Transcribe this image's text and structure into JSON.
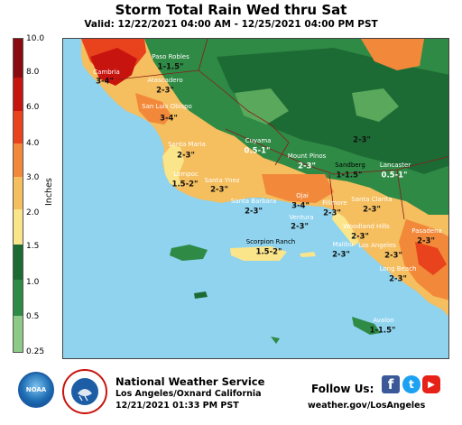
{
  "header": {
    "title": "Storm Total Rain Wed thru Sat",
    "valid": "Valid: 12/22/2021 04:00 AM - 12/25/2021 04:00 PM PST"
  },
  "legend": {
    "axis_label": "Inches",
    "ticks": [
      "10.0",
      "8.0",
      "6.0",
      "4.0",
      "3.0",
      "2.0",
      "1.5",
      "1.0",
      "0.5",
      "0.25"
    ],
    "colors": [
      "#8a0a10",
      "#c8140f",
      "#e8431c",
      "#f2893a",
      "#f5be5e",
      "#fbe58b",
      "#1d6b34",
      "#2f8a45",
      "#59a85c",
      "#8fc987"
    ]
  },
  "map": {
    "ocean_color": "#8fd3ef",
    "places": [
      {
        "name": "Paso Robles",
        "label": "Paso Robles",
        "amount": "1-1.5\""
      },
      {
        "name": "Cambria",
        "label": "Cambria",
        "amount": "3-4\""
      },
      {
        "name": "Atascadero",
        "label": "Atascadero",
        "amount": "2-3\""
      },
      {
        "name": "San Luis Obispo",
        "label": "San Luis Obispo",
        "amount": "3-4\""
      },
      {
        "name": "Santa Maria",
        "label": "Santa Maria",
        "amount": "2-3\""
      },
      {
        "name": "Cuyama",
        "label": "Cuyama",
        "amount": "0.5-1\""
      },
      {
        "name": "Mount Pinos",
        "label": "Mount Pinos",
        "amount": "2-3\""
      },
      {
        "name": "Sandberg",
        "label": "Sandberg",
        "amount": "1-1.5\""
      },
      {
        "name": "Lancaster",
        "label": "Lancaster",
        "amount": "0.5-1\""
      },
      {
        "name": "Tejon",
        "label": "",
        "amount": "2-3\""
      },
      {
        "name": "Lompoc",
        "label": "Lompoc",
        "amount": "1.5-2\""
      },
      {
        "name": "Santa Ynez",
        "label": "Santa Ynez",
        "amount": "2-3\""
      },
      {
        "name": "Santa Barbara",
        "label": "Santa Barbara",
        "amount": "2-3\""
      },
      {
        "name": "Ojai",
        "label": "Ojai",
        "amount": "3-4\""
      },
      {
        "name": "Fillmore",
        "label": "Fillmore",
        "amount": "2-3\""
      },
      {
        "name": "Santa Clarita",
        "label": "Santa Clarita",
        "amount": "2-3\""
      },
      {
        "name": "Ventura",
        "label": "Ventura",
        "amount": "2-3\""
      },
      {
        "name": "Woodland Hills",
        "label": "Woodland Hills",
        "amount": "2-3\""
      },
      {
        "name": "Pasadena",
        "label": "Pasadena",
        "amount": "2-3\""
      },
      {
        "name": "Malibu",
        "label": "Malibu",
        "amount": "2-3\""
      },
      {
        "name": "Los Angeles",
        "label": "Los Angeles",
        "amount": "2-3\""
      },
      {
        "name": "Scorpion Ranch",
        "label": "Scorpion Ranch",
        "amount": "1.5-2\""
      },
      {
        "name": "Long Beach",
        "label": "Long Beach",
        "amount": "2-3\""
      },
      {
        "name": "Avalon",
        "label": "Avalon",
        "amount": "1-1.5\""
      }
    ]
  },
  "footer": {
    "logo_noaa": "NOAA",
    "logo_nws": "NATIONAL WEATHER SERVICE",
    "org": "National Weather Service",
    "office": "Los Angeles/Oxnard California",
    "issued": "12/21/2021 01:33 PM PST",
    "follow": "Follow Us:",
    "facebook": "f",
    "twitter": "t",
    "youtube": "▶",
    "website": "weather.gov/LosAngeles"
  }
}
